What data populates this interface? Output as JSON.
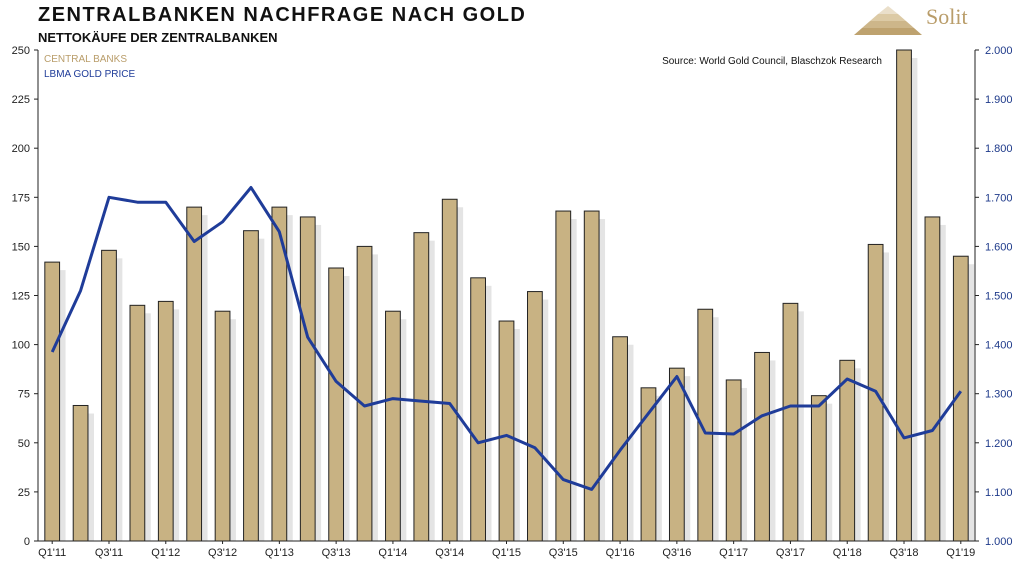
{
  "title": "ZENTRALBANKEN NACHFRAGE NACH GOLD",
  "subtitle": "NETTOKÄUFE DER ZENTRALBANKEN",
  "brand": "Solit",
  "colors": {
    "bars": "#c8b283",
    "bar_stroke": "#222222",
    "line": "#1f3c99",
    "shadow": "#e4e4e4"
  },
  "chart_data": {
    "type": "bar",
    "source": "Source: World Gold Council, Blaschzok Research",
    "categories": [
      "Q1'11",
      "Q2'11",
      "Q3'11",
      "Q4'11",
      "Q1'12",
      "Q2'12",
      "Q3'12",
      "Q4'12",
      "Q1'13",
      "Q2'13",
      "Q3'13",
      "Q4'13",
      "Q1'14",
      "Q2'14",
      "Q3'14",
      "Q4'14",
      "Q1'15",
      "Q2'15",
      "Q3'15",
      "Q4'15",
      "Q1'16",
      "Q2'16",
      "Q3'16",
      "Q4'16",
      "Q1'17",
      "Q2'17",
      "Q3'17",
      "Q4'17",
      "Q1'18",
      "Q2'18",
      "Q3'18",
      "Q4'18",
      "Q1'19"
    ],
    "x_tick_labels": [
      "Q1'11",
      "Q3'11",
      "Q1'12",
      "Q3'12",
      "Q1'13",
      "Q3'13",
      "Q1'14",
      "Q3'14",
      "Q1'15",
      "Q3'15",
      "Q1'16",
      "Q3'16",
      "Q1'17",
      "Q3'17",
      "Q1'18",
      "Q3'18",
      "Q1'19"
    ],
    "series": [
      {
        "name": "CENTRAL BANKS",
        "axis": "left",
        "type": "bar",
        "values": [
          142,
          69,
          148,
          120,
          122,
          170,
          117,
          158,
          170,
          165,
          139,
          150,
          117,
          157,
          174,
          134,
          112,
          127,
          168,
          168,
          104,
          78,
          88,
          118,
          82,
          96,
          121,
          74,
          92,
          151,
          252,
          165,
          145
        ]
      },
      {
        "name": "LBMA GOLD PRICE",
        "axis": "right",
        "type": "line",
        "values": [
          1385,
          1510,
          1700,
          1690,
          1690,
          1610,
          1650,
          1720,
          1630,
          1415,
          1325,
          1275,
          1290,
          1285,
          1280,
          1200,
          1215,
          1190,
          1125,
          1105,
          1185,
          1260,
          1335,
          1220,
          1218,
          1255,
          1275,
          1275,
          1330,
          1305,
          1210,
          1225,
          1305
        ]
      }
    ],
    "y_left": {
      "min": 0,
      "max": 250,
      "ticks": [
        "0",
        "25",
        "50",
        "75",
        "100",
        "125",
        "150",
        "175",
        "200",
        "225",
        "250"
      ]
    },
    "y_right": {
      "min": 1000,
      "max": 2000,
      "ticks": [
        "1.000",
        "1.100",
        "1.200",
        "1.300",
        "1.400",
        "1.500",
        "1.600",
        "1.700",
        "1.800",
        "1.900",
        "2.000"
      ]
    },
    "legend": {
      "placement": "top-left",
      "entries": [
        "CENTRAL BANKS",
        "LBMA GOLD PRICE"
      ]
    }
  }
}
